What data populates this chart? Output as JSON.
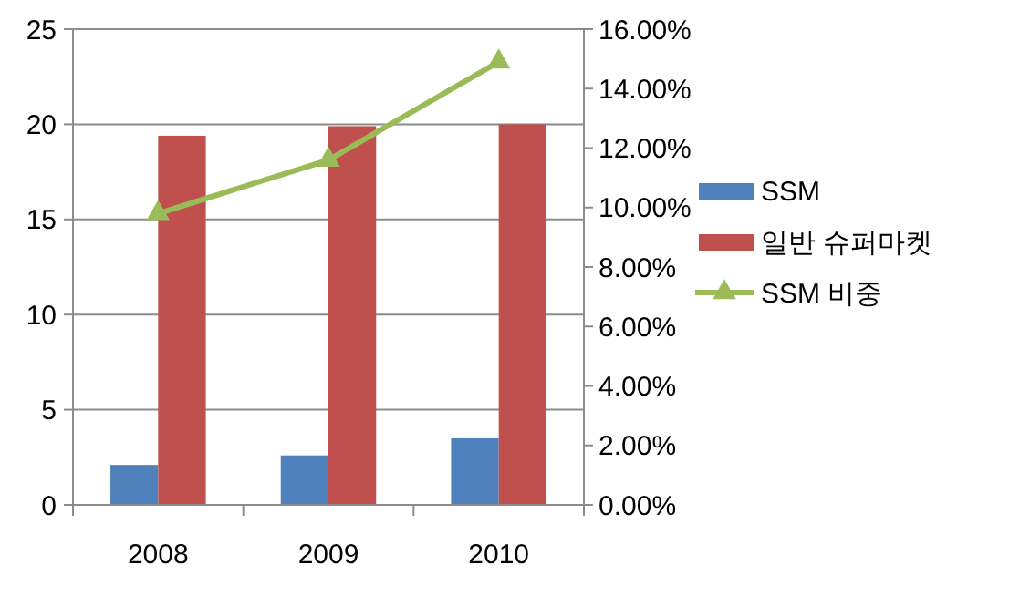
{
  "chart_data": {
    "type": "bar",
    "categories": [
      "2008",
      "2009",
      "2010"
    ],
    "series": [
      {
        "name": "SSM",
        "color": "#4f81bd",
        "values": [
          2.1,
          2.6,
          3.5
        ]
      },
      {
        "name": "일반 슈퍼마켓",
        "color": "#c0504d",
        "values": [
          19.4,
          19.9,
          20.0
        ]
      },
      {
        "name": "SSM 비중",
        "color": "#9bbb59",
        "type": "line",
        "axis": "y2",
        "marker": "triangle",
        "values": [
          9.8,
          11.6,
          14.9
        ]
      }
    ],
    "ylim": [
      0,
      25
    ],
    "yticks": [
      0,
      5,
      10,
      15,
      20,
      25
    ],
    "y2lim": [
      0,
      16
    ],
    "y2ticks": [
      {
        "value": 0,
        "label": "0.00%"
      },
      {
        "value": 2,
        "label": "2.00%"
      },
      {
        "value": 4,
        "label": "4.00%"
      },
      {
        "value": 6,
        "label": "6.00%"
      },
      {
        "value": 8,
        "label": "8.00%"
      },
      {
        "value": 10,
        "label": "10.00%"
      },
      {
        "value": 12,
        "label": "12.00%"
      },
      {
        "value": 14,
        "label": "14.00%"
      },
      {
        "value": 16,
        "label": "16.00%"
      }
    ],
    "grid": "y",
    "legend": "right"
  }
}
